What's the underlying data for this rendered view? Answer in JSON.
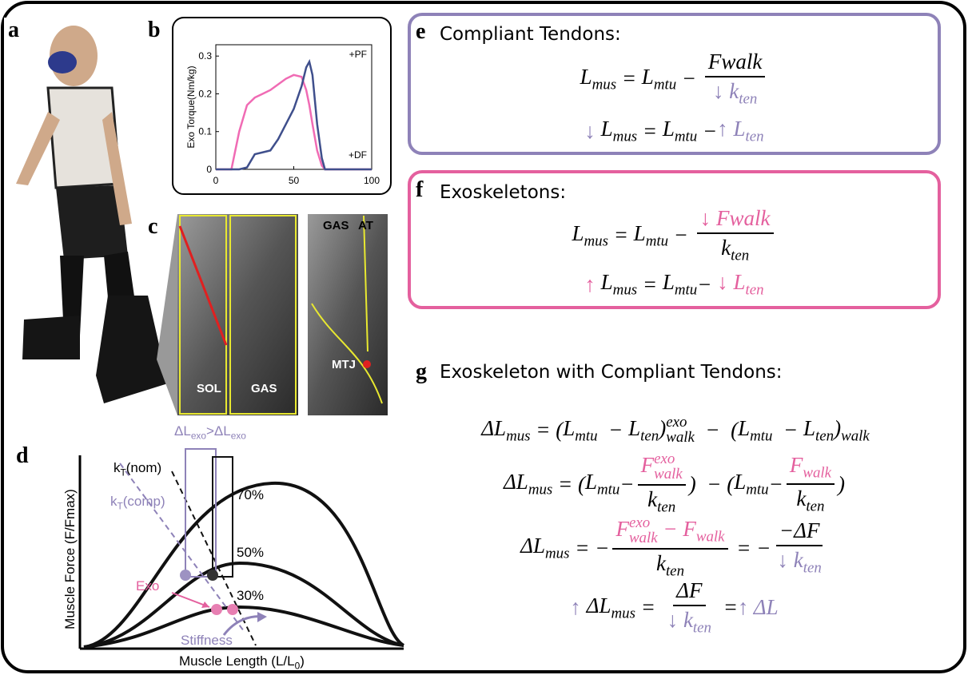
{
  "labels": {
    "a": "a",
    "b": "b",
    "c": "c",
    "d": "d",
    "e": "e",
    "f": "f",
    "g": "g"
  },
  "torque_chart": {
    "type": "line",
    "ylabel": "Exo Torque(Nm/kg)",
    "x": [
      0,
      10,
      15,
      20,
      25,
      30,
      35,
      40,
      45,
      50,
      55,
      58,
      60,
      62,
      65,
      68,
      70,
      100
    ],
    "xlim": [
      0,
      100
    ],
    "xticks": [
      0,
      50,
      100
    ],
    "ylim": [
      0,
      0.33
    ],
    "yticks": [
      0,
      0.1,
      0.2,
      0.3
    ],
    "series": [
      {
        "color": "#f06bb4",
        "values": [
          0,
          0,
          0.1,
          0.17,
          0.19,
          0.2,
          0.21,
          0.225,
          0.24,
          0.25,
          0.245,
          0.21,
          0.17,
          0.12,
          0.05,
          0.01,
          0,
          0
        ]
      },
      {
        "color": "#3f4f8c",
        "values": [
          0,
          0,
          0,
          0.005,
          0.04,
          0.045,
          0.05,
          0.08,
          0.12,
          0.16,
          0.22,
          0.27,
          0.285,
          0.25,
          0.12,
          0.03,
          0,
          0
        ]
      }
    ],
    "annotations": [
      "+PF",
      "+DF"
    ]
  },
  "ultrasound": {
    "labels": [
      "SOL",
      "GAS",
      "GAS",
      "AT",
      "MTJ"
    ]
  },
  "force_length": {
    "delta_label": [
      {
        "text": "ΔL",
        "sub": "exo",
        "color": "#8e82b8"
      },
      {
        "text": ">",
        "color": "#8e82b8"
      },
      {
        "text": "ΔL",
        "sub": "exo",
        "color": "#8e82b8"
      }
    ],
    "curves": [
      "70%",
      "50%",
      "30%"
    ],
    "kt_nom": [
      {
        "text": "k",
        "sub": "T"
      },
      "(nom)"
    ],
    "kt_comp": [
      {
        "text": "k",
        "sub": "T",
        "color": "#8e82b8"
      },
      {
        "text": "(comp)",
        "color": "#8e82b8"
      }
    ],
    "exo": "Exo",
    "stiffness": "Stiffness",
    "ylabel": "Muscle Force (F/Fmax)",
    "xlabel": [
      "Muscle Length (L/",
      {
        "text": "L",
        "sub": "0"
      },
      ")"
    ]
  },
  "compliant": {
    "title": "Compliant Tendons:",
    "equations": [
      [
        {
          "text": "L",
          "sub": "mus"
        },
        " = ",
        {
          "text": "L",
          "sub": "mtu"
        },
        " − ",
        {
          "num": [
            "Fwalk"
          ],
          "den": [
            {
              "text": "↓ k",
              "sub": "ten",
              "color": "#8e82b8"
            }
          ]
        }
      ],
      [
        {
          "text": "↓ ",
          "color": "#8e82b8"
        },
        {
          "text": "L",
          "sub": "mus"
        },
        " = ",
        {
          "text": "L",
          "sub": "mtu"
        },
        " −",
        {
          "text": "↑ L",
          "sub": "ten",
          "color": "#8e82b8"
        }
      ]
    ]
  },
  "exoskeletons": {
    "title": "Exoskeletons:",
    "equations": [
      [
        {
          "text": "L",
          "sub": "mus"
        },
        " = ",
        {
          "text": "L",
          "sub": "mtu"
        },
        " − ",
        {
          "num": [
            {
              "text": "↓ Fwalk",
              "color": "#e4609e"
            }
          ],
          "den": [
            {
              "text": "k",
              "sub": "ten"
            }
          ]
        }
      ],
      [
        {
          "text": "↑ ",
          "color": "#e4609e"
        },
        {
          "text": "L",
          "sub": "mus"
        },
        " = ",
        {
          "text": "L",
          "sub": "mtu"
        },
        "− ",
        {
          "text": "↓ L",
          "sub": "ten",
          "color": "#e4609e"
        }
      ]
    ]
  },
  "combined": {
    "title": "Exoskeleton with Compliant Tendons:",
    "equations": [
      [
        {
          "text": "ΔL",
          "sub": "mus"
        },
        " = (",
        {
          "text": "L",
          "sub": "mtu"
        },
        "  − ",
        {
          "text": "L",
          "sub": "ten"
        },
        {
          "text": ")",
          "sup": "exo",
          "sub": "walk"
        },
        "  −  (",
        {
          "text": "L",
          "sub": "mtu"
        },
        "  − ",
        {
          "text": "L",
          "sub": "ten"
        },
        {
          "text": ")",
          "sub": "walk"
        }
      ],
      [
        {
          "text": "ΔL",
          "sub": "mus"
        },
        " = (",
        {
          "text": "L",
          "sub": "mtu"
        },
        "−",
        {
          "num": [
            {
              "text": "F",
              "sup": "exo",
              "sub": "walk",
              "color": "#e4609e"
            }
          ],
          "den": [
            {
              "text": "k",
              "sub": "ten"
            }
          ]
        },
        ")  − (",
        {
          "text": "L",
          "sub": "mtu"
        },
        "−",
        {
          "num": [
            {
              "text": "F",
              "sub": "walk",
              "color": "#e4609e"
            }
          ],
          "den": [
            {
              "text": "k",
              "sub": "ten"
            }
          ]
        },
        ")"
      ],
      [
        {
          "text": "ΔL",
          "sub": "mus"
        },
        " = −",
        {
          "num": [
            {
              "text": "F",
              "sup": "exo",
              "sub": "walk",
              "color": "#e4609e"
            },
            {
              "text": " − ",
              "color": "#e4609e"
            },
            {
              "text": "F",
              "sub": "walk",
              "color": "#e4609e"
            }
          ],
          "den": [
            {
              "text": "k",
              "sub": "ten"
            }
          ]
        },
        " = −",
        {
          "num": [
            "−ΔF"
          ],
          "den": [
            {
              "text": "↓ k",
              "sub": "ten",
              "color": "#8e82b8"
            }
          ]
        }
      ],
      [
        {
          "text": "↑ ",
          "color": "#8e82b8"
        },
        {
          "text": "ΔL",
          "sub": "mus"
        },
        " = ",
        {
          "num": [
            "ΔF"
          ],
          "den": [
            {
              "text": "↓ k",
              "sub": "ten",
              "color": "#8e82b8"
            }
          ]
        },
        " =",
        {
          "text": "↑ ΔL",
          "color": "#8e82b8"
        }
      ]
    ]
  }
}
